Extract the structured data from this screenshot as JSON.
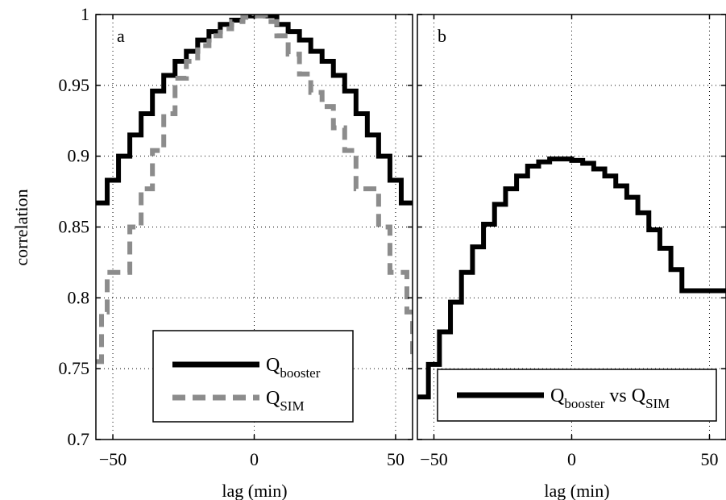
{
  "chart_data": [
    {
      "panel": "a",
      "type": "line",
      "step": true,
      "xlabel": "lag (min)",
      "ylabel": "correlation",
      "xlim": [
        -56,
        56
      ],
      "ylim": [
        0.7,
        1.0
      ],
      "xticks": [
        -50,
        0,
        50
      ],
      "yticks": [
        0.7,
        0.75,
        0.8,
        0.85,
        0.9,
        0.95,
        1
      ],
      "ytick_labels": [
        "0.7",
        "0.75",
        "0.8",
        "0.85",
        "0.9",
        "0.95",
        "1"
      ],
      "grid": true,
      "legend_position": "bottom-center",
      "series": [
        {
          "name": "Q",
          "name_sub": "booster",
          "color": "#000000",
          "style": "solid",
          "x": [
            -56,
            -52,
            -48,
            -44,
            -40,
            -36,
            -32,
            -28,
            -24,
            -20,
            -16,
            -12,
            -8,
            -4,
            0,
            4,
            8,
            12,
            16,
            20,
            24,
            28,
            32,
            36,
            40,
            44,
            48,
            52,
            56
          ],
          "y": [
            0.867,
            0.883,
            0.9,
            0.915,
            0.93,
            0.946,
            0.957,
            0.967,
            0.974,
            0.982,
            0.988,
            0.993,
            0.996,
            0.999,
            1.0,
            0.999,
            0.993,
            0.988,
            0.982,
            0.974,
            0.967,
            0.957,
            0.946,
            0.93,
            0.915,
            0.9,
            0.883,
            0.867,
            0.867
          ]
        },
        {
          "name": "Q",
          "name_sub": "SIM",
          "color": "#8c8c8c",
          "style": "dashed",
          "x": [
            -56,
            -54,
            -52,
            -48,
            -44,
            -40,
            -36,
            -32,
            -28,
            -24,
            -20,
            -16,
            -12,
            -8,
            -4,
            0,
            4,
            8,
            12,
            16,
            20,
            24,
            28,
            32,
            36,
            40,
            44,
            48,
            52,
            54,
            56
          ],
          "y": [
            0.755,
            0.79,
            0.818,
            0.818,
            0.85,
            0.877,
            0.904,
            0.93,
            0.955,
            0.967,
            0.978,
            0.985,
            0.99,
            0.995,
            0.998,
            0.999,
            0.995,
            0.985,
            0.972,
            0.958,
            0.945,
            0.935,
            0.92,
            0.904,
            0.877,
            0.877,
            0.85,
            0.818,
            0.818,
            0.79,
            0.755
          ]
        }
      ]
    },
    {
      "panel": "b",
      "type": "line",
      "step": true,
      "xlabel": "lag (min)",
      "ylabel": "",
      "xlim": [
        -56,
        56
      ],
      "ylim": [
        0.7,
        1.0
      ],
      "xticks": [
        -50,
        0,
        50
      ],
      "grid": true,
      "legend_position": "bottom-center",
      "series": [
        {
          "name": "Q",
          "name_sub": "booster",
          "name_mid": "vs Q",
          "name_sub2": "SIM",
          "color": "#000000",
          "style": "solid",
          "x": [
            -56,
            -52,
            -48,
            -44,
            -40,
            -36,
            -32,
            -28,
            -24,
            -20,
            -16,
            -12,
            -8,
            -4,
            0,
            4,
            8,
            12,
            16,
            20,
            24,
            28,
            32,
            36,
            40,
            44,
            48,
            52,
            56
          ],
          "y": [
            0.73,
            0.753,
            0.776,
            0.797,
            0.818,
            0.836,
            0.852,
            0.866,
            0.877,
            0.886,
            0.893,
            0.896,
            0.898,
            0.898,
            0.897,
            0.895,
            0.891,
            0.886,
            0.879,
            0.871,
            0.86,
            0.848,
            0.835,
            0.82,
            0.805,
            0.805,
            0.805,
            0.805,
            0.805
          ]
        }
      ]
    }
  ]
}
